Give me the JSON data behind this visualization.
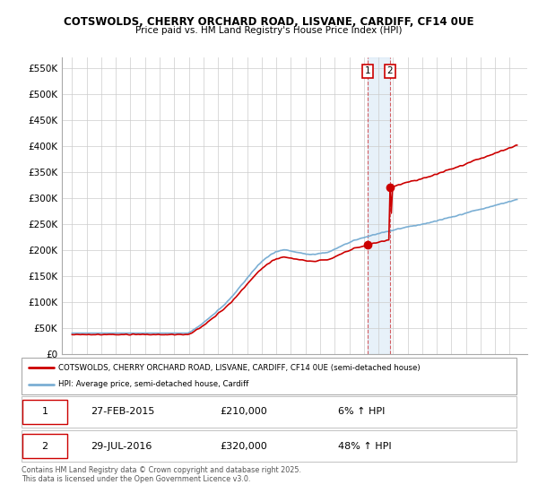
{
  "title_line1": "COTSWOLDS, CHERRY ORCHARD ROAD, LISVANE, CARDIFF, CF14 0UE",
  "title_line2": "Price paid vs. HM Land Registry's House Price Index (HPI)",
  "ylim": [
    0,
    570000
  ],
  "yticks": [
    0,
    50000,
    100000,
    150000,
    200000,
    250000,
    300000,
    350000,
    400000,
    450000,
    500000,
    550000
  ],
  "ytick_labels": [
    "£0",
    "£50K",
    "£100K",
    "£150K",
    "£200K",
    "£250K",
    "£300K",
    "£350K",
    "£400K",
    "£450K",
    "£500K",
    "£550K"
  ],
  "hpi_color": "#7bafd4",
  "price_color": "#cc0000",
  "idx1": 240,
  "idx2": 258,
  "marker1_price": 210000,
  "marker2_price": 320000,
  "marker1_date": "27-FEB-2015",
  "marker2_date": "29-JUL-2016",
  "marker1_pct": "6% ↑ HPI",
  "marker2_pct": "48% ↑ HPI",
  "legend_line1": "COTSWOLDS, CHERRY ORCHARD ROAD, LISVANE, CARDIFF, CF14 0UE (semi-detached house)",
  "legend_line2": "HPI: Average price, semi-detached house, Cardiff",
  "footer": "Contains HM Land Registry data © Crown copyright and database right 2025.\nThis data is licensed under the Open Government Licence v3.0.",
  "background_color": "#ffffff",
  "grid_color": "#cccccc",
  "n_months": 362,
  "year_start": 1995.0,
  "year_end": 2025.5
}
